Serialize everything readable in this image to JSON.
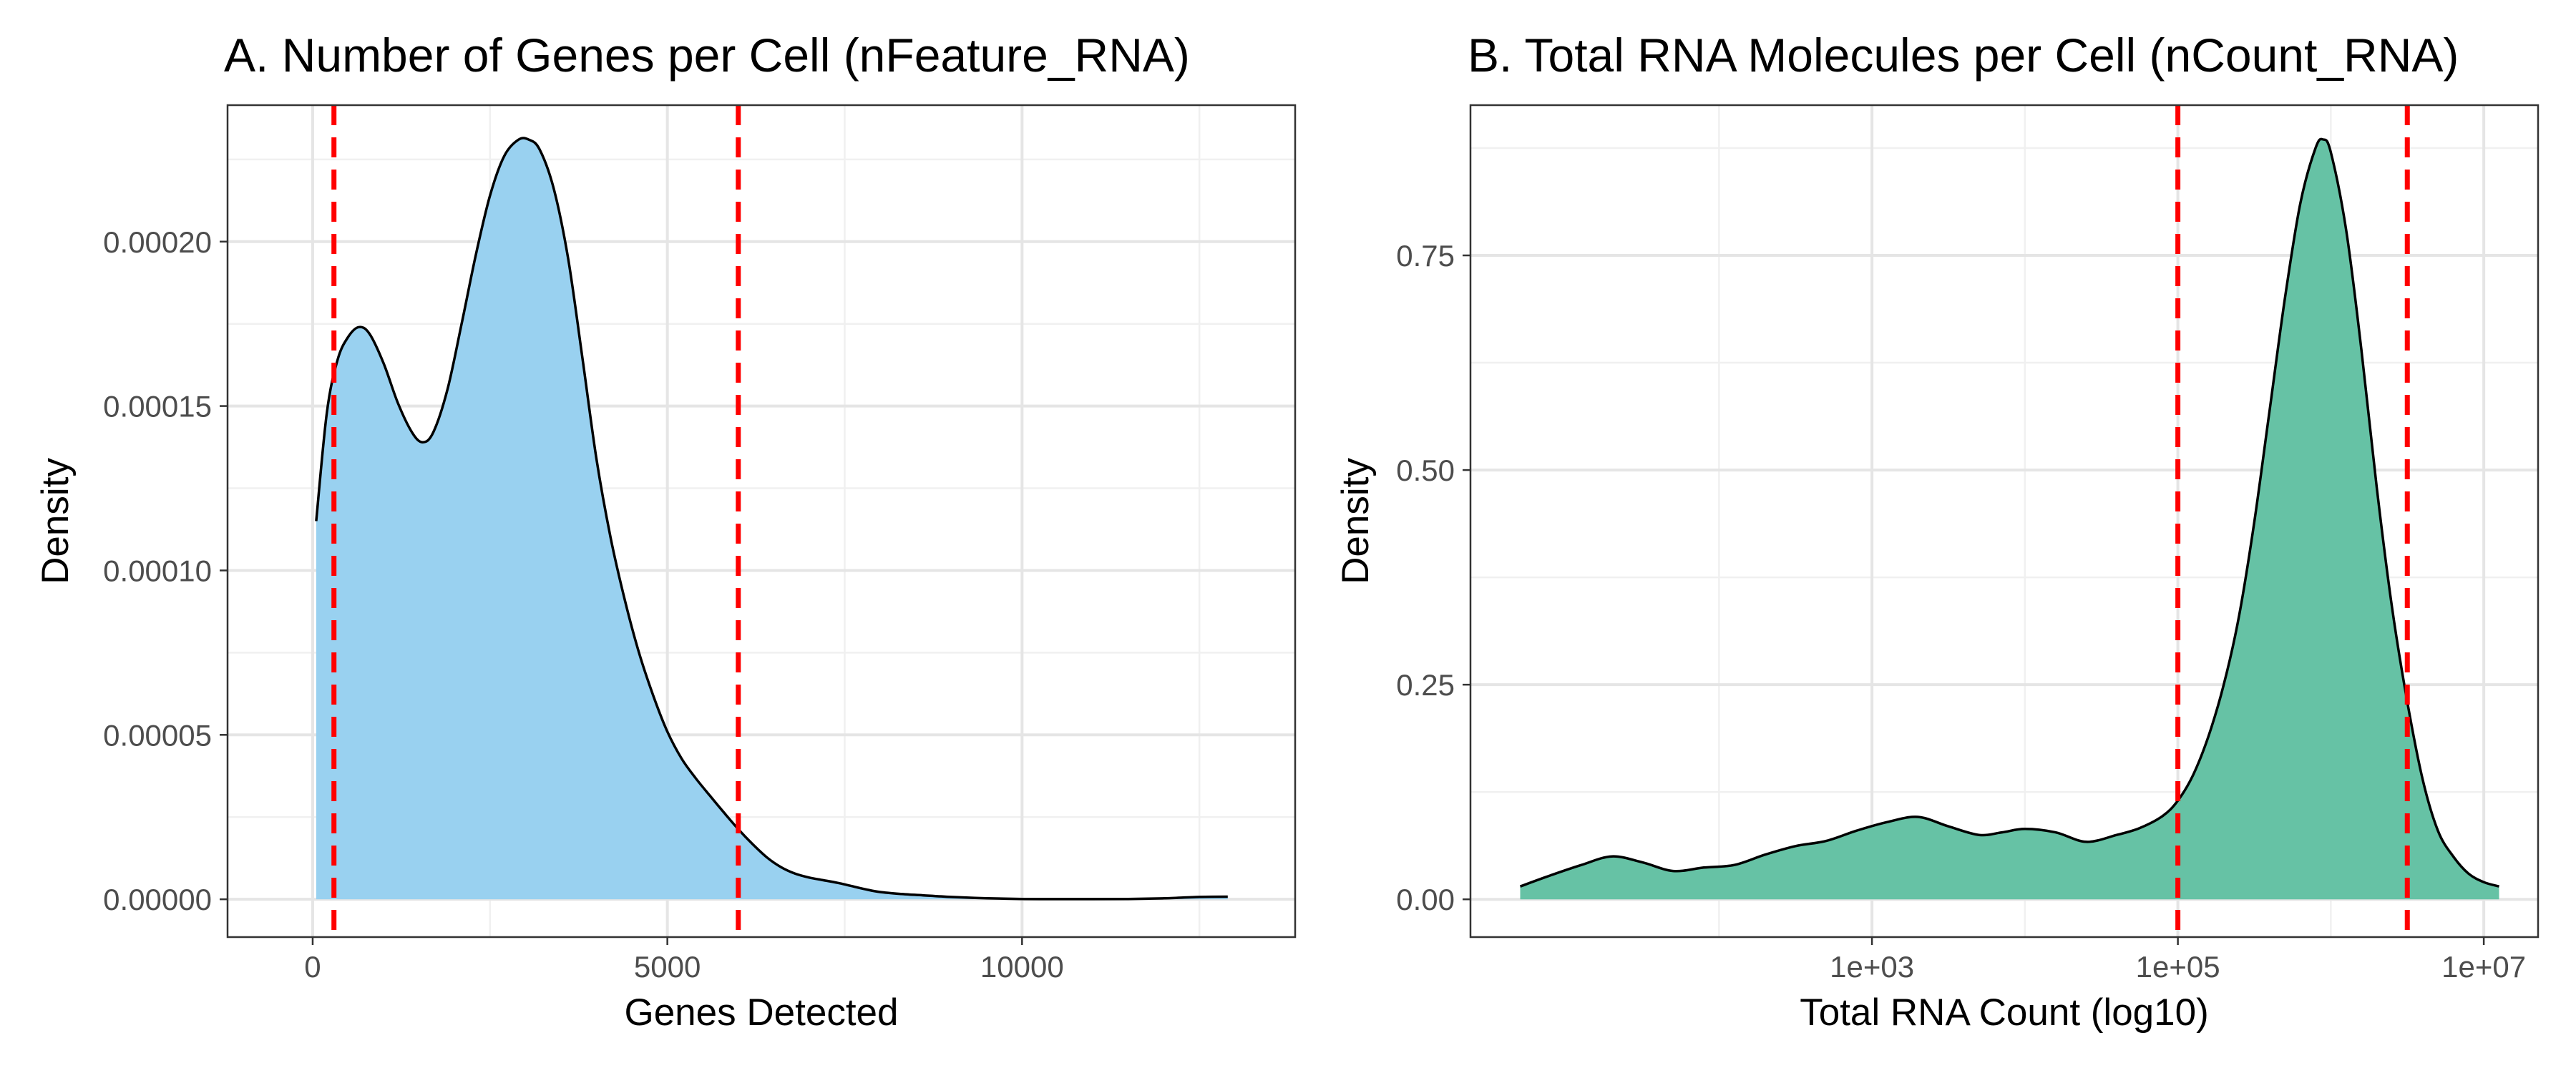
{
  "chart_data": [
    {
      "type": "area",
      "title": "A. Number of Genes per Cell (nFeature_RNA)",
      "xlabel": "Genes Detected",
      "ylabel": "Density",
      "xlim": [
        -1200,
        13850
      ],
      "ylim": [
        -1.15e-05,
        0.0002415
      ],
      "x_ticks": [
        0,
        5000,
        10000
      ],
      "x_tick_labels": [
        "0",
        "5000",
        "10000"
      ],
      "y_ticks": [
        0,
        5e-05,
        0.0001,
        0.00015,
        0.0002
      ],
      "y_tick_labels": [
        "0.00000",
        "0.00005",
        "0.00010",
        "0.00015",
        "0.00020"
      ],
      "x_scale": "linear",
      "grid": true,
      "fill_color": "#99d1f0",
      "cutoff_color": "#ff0000",
      "cutoffs": [
        300,
        6000
      ],
      "density": {
        "x": [
          50,
          200,
          350,
          500,
          650,
          800,
          1000,
          1200,
          1400,
          1550,
          1700,
          1900,
          2100,
          2300,
          2500,
          2700,
          2900,
          3050,
          3200,
          3400,
          3600,
          3800,
          4000,
          4200,
          4400,
          4600,
          4800,
          5000,
          5200,
          5400,
          5600,
          5800,
          6000,
          6200,
          6400,
          6600,
          6800,
          7000,
          7200,
          7400,
          7600,
          7800,
          8000,
          8300,
          8600,
          9000,
          9500,
          10000,
          10500,
          11000,
          11500,
          12000,
          12500,
          12900
        ],
        "y": [
          0.000115,
          0.000148,
          0.000164,
          0.000171,
          0.000174,
          0.000172,
          0.000163,
          0.000151,
          0.000142,
          0.000139,
          0.000142,
          0.000155,
          0.000175,
          0.000196,
          0.000214,
          0.000226,
          0.000231,
          0.000231,
          0.000228,
          0.000216,
          0.000195,
          0.000165,
          0.000134,
          0.00011,
          9.1e-05,
          7.5e-05,
          6.2e-05,
          5.1e-05,
          4.28e-05,
          3.68e-05,
          3.15e-05,
          2.63e-05,
          2.13e-05,
          1.68e-05,
          1.28e-05,
          9.8e-06,
          7.8e-06,
          6.6e-06,
          5.8e-06,
          5e-06,
          4e-06,
          3e-06,
          2.2e-06,
          1.6e-06,
          1.2e-06,
          7e-07,
          3e-07,
          1e-07,
          5e-08,
          5e-08,
          1e-07,
          3e-07,
          7e-07,
          8e-07
        ]
      }
    },
    {
      "type": "area",
      "title": "B. Total RNA Molecules per Cell (nCount_RNA)",
      "xlabel": "Total RNA Count (log10)",
      "ylabel": "Density",
      "x_scale": "log10",
      "xlim_log10": [
        0.375,
        7.355
      ],
      "ylim": [
        -0.044,
        0.925
      ],
      "x_ticks_log10": [
        3,
        5,
        7
      ],
      "x_tick_labels": [
        "1e+03",
        "1e+05",
        "1e+07"
      ],
      "y_ticks": [
        0,
        0.25,
        0.5,
        0.75
      ],
      "y_tick_labels": [
        "0.00",
        "0.25",
        "0.50",
        "0.75"
      ],
      "grid": true,
      "fill_color": "#66c2a5",
      "cutoff_color": "#ff0000",
      "cutoffs_log10": [
        5,
        6.5
      ],
      "density": {
        "x_log10": [
          0.7,
          0.9,
          1.1,
          1.3,
          1.5,
          1.7,
          1.9,
          2.1,
          2.3,
          2.5,
          2.7,
          2.9,
          3.1,
          3.3,
          3.5,
          3.7,
          3.85,
          4.0,
          4.2,
          4.4,
          4.6,
          4.75,
          4.9,
          5.0,
          5.1,
          5.2,
          5.3,
          5.4,
          5.5,
          5.6,
          5.7,
          5.8,
          5.9,
          5.95,
          6.0,
          6.1,
          6.2,
          6.3,
          6.4,
          6.5,
          6.6,
          6.7,
          6.8,
          6.9,
          7.0,
          7.1
        ],
        "y": [
          0.015,
          0.028,
          0.04,
          0.05,
          0.043,
          0.033,
          0.037,
          0.04,
          0.052,
          0.062,
          0.068,
          0.08,
          0.09,
          0.096,
          0.085,
          0.075,
          0.078,
          0.082,
          0.078,
          0.067,
          0.075,
          0.083,
          0.097,
          0.115,
          0.145,
          0.19,
          0.25,
          0.33,
          0.44,
          0.57,
          0.7,
          0.81,
          0.875,
          0.885,
          0.87,
          0.78,
          0.64,
          0.48,
          0.34,
          0.23,
          0.14,
          0.08,
          0.05,
          0.03,
          0.02,
          0.015
        ]
      }
    }
  ]
}
